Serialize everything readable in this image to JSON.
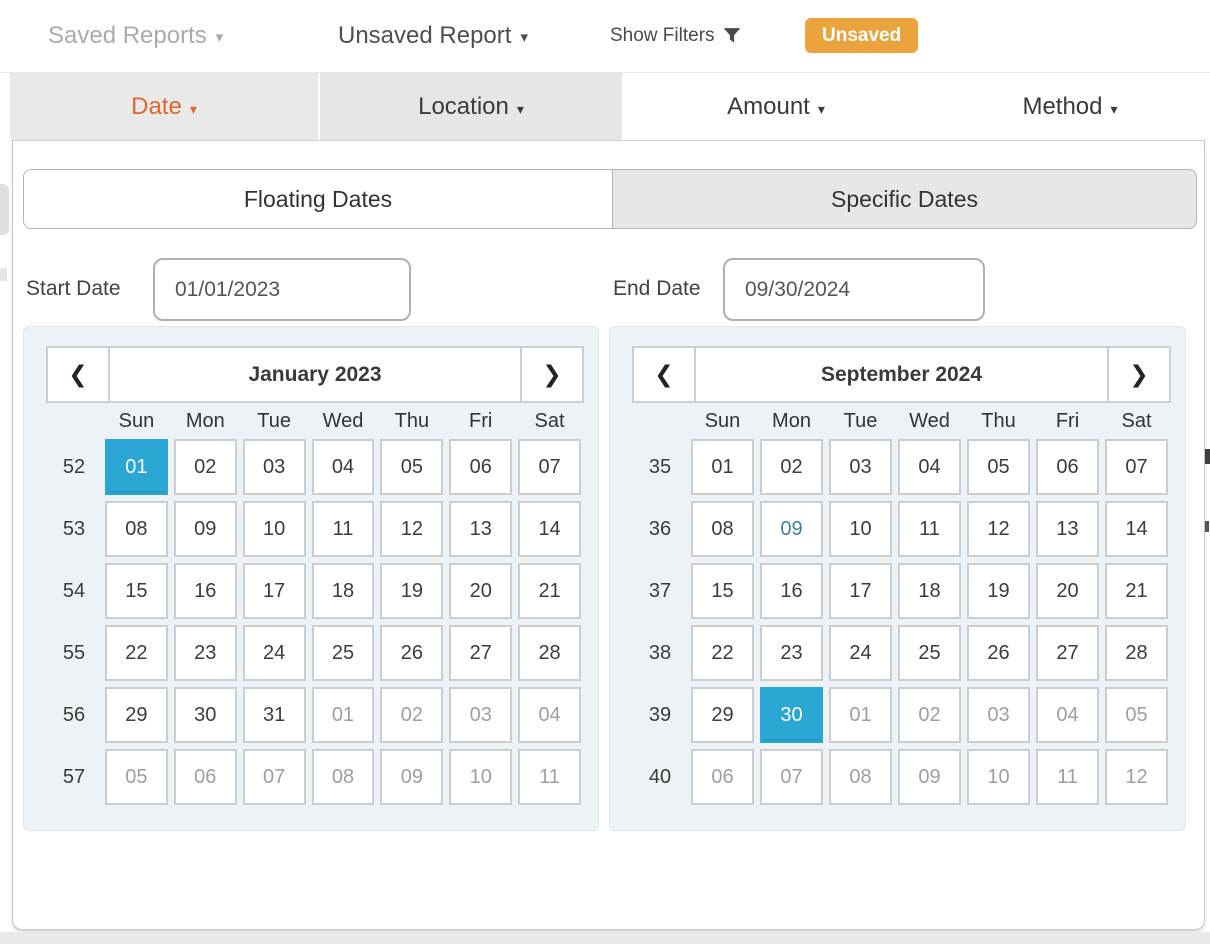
{
  "header": {
    "saved_reports": "Saved Reports",
    "unsaved_report": "Unsaved Report",
    "show_filters": "Show Filters",
    "unsaved_badge": "Unsaved"
  },
  "filter_tabs": [
    {
      "label": "Date",
      "active": true
    },
    {
      "label": "Location",
      "active": false
    },
    {
      "label": "Amount",
      "active": false
    },
    {
      "label": "Method",
      "active": false
    }
  ],
  "mode_tabs": [
    {
      "label": "Floating Dates",
      "selected": false
    },
    {
      "label": "Specific Dates",
      "selected": true
    }
  ],
  "date_fields": {
    "start": {
      "label": "Start Date",
      "value": "01/01/2023"
    },
    "end": {
      "label": "End Date",
      "value": "09/30/2024"
    }
  },
  "colors": {
    "orange": "#E0672E",
    "badge": "#EBA33D",
    "blue": "#2BA7D4",
    "today": "#41809E",
    "muted": "#99A0A4",
    "graytab": "#E9E9E9",
    "calbg": "#EDF2F6",
    "calborder": "#DDE7EC",
    "cellborder": "#C9CED2",
    "panelborder": "#C6C6C6",
    "lightlabel": "#ABABAB"
  },
  "calendars": [
    {
      "title": "January 2023",
      "prev_icon": "❮",
      "next_icon": "❯",
      "weekdays": [
        "Sun",
        "Mon",
        "Tue",
        "Wed",
        "Thu",
        "Fri",
        "Sat"
      ],
      "weeks": [
        {
          "num": "52",
          "days": [
            {
              "t": "01",
              "s": "selected"
            },
            {
              "t": "02"
            },
            {
              "t": "03"
            },
            {
              "t": "04"
            },
            {
              "t": "05"
            },
            {
              "t": "06"
            },
            {
              "t": "07"
            }
          ]
        },
        {
          "num": "53",
          "days": [
            {
              "t": "08"
            },
            {
              "t": "09"
            },
            {
              "t": "10"
            },
            {
              "t": "11"
            },
            {
              "t": "12"
            },
            {
              "t": "13"
            },
            {
              "t": "14"
            }
          ]
        },
        {
          "num": "54",
          "days": [
            {
              "t": "15"
            },
            {
              "t": "16"
            },
            {
              "t": "17"
            },
            {
              "t": "18"
            },
            {
              "t": "19"
            },
            {
              "t": "20"
            },
            {
              "t": "21"
            }
          ]
        },
        {
          "num": "55",
          "days": [
            {
              "t": "22"
            },
            {
              "t": "23"
            },
            {
              "t": "24"
            },
            {
              "t": "25"
            },
            {
              "t": "26"
            },
            {
              "t": "27"
            },
            {
              "t": "28"
            }
          ]
        },
        {
          "num": "56",
          "days": [
            {
              "t": "29"
            },
            {
              "t": "30"
            },
            {
              "t": "31"
            },
            {
              "t": "01",
              "s": "muted"
            },
            {
              "t": "02",
              "s": "muted"
            },
            {
              "t": "03",
              "s": "muted"
            },
            {
              "t": "04",
              "s": "muted"
            }
          ]
        },
        {
          "num": "57",
          "days": [
            {
              "t": "05",
              "s": "muted"
            },
            {
              "t": "06",
              "s": "muted"
            },
            {
              "t": "07",
              "s": "muted"
            },
            {
              "t": "08",
              "s": "muted"
            },
            {
              "t": "09",
              "s": "muted"
            },
            {
              "t": "10",
              "s": "muted"
            },
            {
              "t": "11",
              "s": "muted"
            }
          ]
        }
      ]
    },
    {
      "title": "September 2024",
      "prev_icon": "❮",
      "next_icon": "❯",
      "weekdays": [
        "Sun",
        "Mon",
        "Tue",
        "Wed",
        "Thu",
        "Fri",
        "Sat"
      ],
      "weeks": [
        {
          "num": "35",
          "days": [
            {
              "t": "01"
            },
            {
              "t": "02"
            },
            {
              "t": "03"
            },
            {
              "t": "04"
            },
            {
              "t": "05"
            },
            {
              "t": "06"
            },
            {
              "t": "07"
            }
          ]
        },
        {
          "num": "36",
          "days": [
            {
              "t": "08"
            },
            {
              "t": "09",
              "s": "today"
            },
            {
              "t": "10"
            },
            {
              "t": "11"
            },
            {
              "t": "12"
            },
            {
              "t": "13"
            },
            {
              "t": "14"
            }
          ]
        },
        {
          "num": "37",
          "days": [
            {
              "t": "15"
            },
            {
              "t": "16"
            },
            {
              "t": "17"
            },
            {
              "t": "18"
            },
            {
              "t": "19"
            },
            {
              "t": "20"
            },
            {
              "t": "21"
            }
          ]
        },
        {
          "num": "38",
          "days": [
            {
              "t": "22"
            },
            {
              "t": "23"
            },
            {
              "t": "24"
            },
            {
              "t": "25"
            },
            {
              "t": "26"
            },
            {
              "t": "27"
            },
            {
              "t": "28"
            }
          ]
        },
        {
          "num": "39",
          "days": [
            {
              "t": "29"
            },
            {
              "t": "30",
              "s": "selected"
            },
            {
              "t": "01",
              "s": "muted"
            },
            {
              "t": "02",
              "s": "muted"
            },
            {
              "t": "03",
              "s": "muted"
            },
            {
              "t": "04",
              "s": "muted"
            },
            {
              "t": "05",
              "s": "muted"
            }
          ]
        },
        {
          "num": "40",
          "days": [
            {
              "t": "06",
              "s": "muted"
            },
            {
              "t": "07",
              "s": "muted"
            },
            {
              "t": "08",
              "s": "muted"
            },
            {
              "t": "09",
              "s": "muted"
            },
            {
              "t": "10",
              "s": "muted"
            },
            {
              "t": "11",
              "s": "muted"
            },
            {
              "t": "12",
              "s": "muted"
            }
          ]
        }
      ]
    }
  ]
}
